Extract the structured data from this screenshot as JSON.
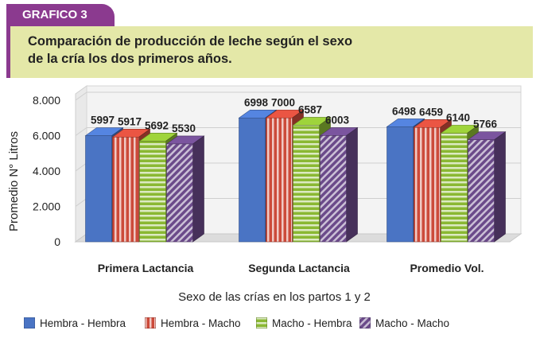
{
  "header": {
    "tag": "GRAFICO 3",
    "title": "Comparación de producción de leche según el sexo\nde la cría los dos primeros años."
  },
  "colors": {
    "tag_bg": "#8b3a8f",
    "title_bg": "#e4e8a8",
    "series": [
      "#4a74c4",
      "#cc4a3a",
      "#8ab833",
      "#6b4a8a"
    ]
  },
  "chart_data": {
    "type": "bar",
    "categories": [
      "Primera Lactancia",
      "Segunda Lactancia",
      "Promedio Vol."
    ],
    "series": [
      {
        "name": "Hembra - Hembra",
        "values": [
          5997,
          6998,
          6498
        ],
        "pattern": "solid"
      },
      {
        "name": "Hembra - Macho",
        "values": [
          5917,
          7000,
          6459
        ],
        "pattern": "vertical-stripes"
      },
      {
        "name": "Macho - Hembra",
        "values": [
          5692,
          6587,
          6140
        ],
        "pattern": "horizontal-stripes"
      },
      {
        "name": "Macho - Macho",
        "values": [
          5530,
          6003,
          5766
        ],
        "pattern": "diagonal-stripes"
      }
    ],
    "value_labels": [
      [
        "5997",
        "5917",
        "5692",
        "5530"
      ],
      [
        "6998",
        "7000",
        "6587",
        "6003"
      ],
      [
        "6498",
        "6459",
        "6140",
        "5766"
      ]
    ],
    "yticks": [
      "0",
      "2.000",
      "4.000",
      "6.000",
      "8.000"
    ],
    "ylim": [
      0,
      8000
    ],
    "xlabel": "Sexo de las crías en los partos 1 y 2",
    "ylabel": "Promedio N° Litros",
    "grid": true,
    "legend_position": "bottom"
  }
}
